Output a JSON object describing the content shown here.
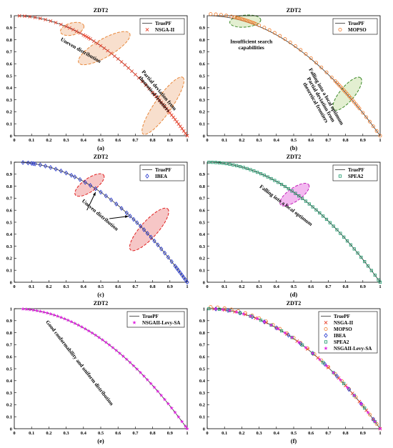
{
  "chart_data": [
    {
      "id": "a",
      "type": "scatter",
      "title": "ZDT2",
      "caption": "(a)",
      "xlim": [
        0,
        1
      ],
      "ylim": [
        0,
        1
      ],
      "xticks": [
        "0",
        "0.1",
        "0.2",
        "0.3",
        "0.4",
        "0.5",
        "0.6",
        "0.7",
        "0.8",
        "0.9",
        "1"
      ],
      "yticks": [
        "0",
        "0.1",
        "0.2",
        "0.3",
        "0.4",
        "0.5",
        "0.6",
        "0.7",
        "0.8",
        "0.9",
        "1"
      ],
      "legend_position": "top-right",
      "legend": [
        "TruePF",
        "NSGA-II"
      ],
      "series": [
        {
          "name": "TruePF",
          "kind": "line",
          "color": "#444444",
          "x_range": [
            0,
            1
          ],
          "formula": "1 - x^2"
        },
        {
          "name": "NSGA-II",
          "kind": "marker",
          "marker": "x",
          "color": "#e8412b",
          "x": [
            0.03,
            0.06,
            0.09,
            0.12,
            0.15,
            0.18,
            0.21,
            0.24,
            0.27,
            0.3,
            0.32,
            0.34,
            0.36,
            0.38,
            0.4,
            0.41,
            0.42,
            0.43,
            0.44,
            0.46,
            0.48,
            0.5,
            0.52,
            0.54,
            0.56,
            0.58,
            0.6,
            0.62,
            0.64,
            0.66,
            0.68,
            0.7,
            0.72,
            0.74,
            0.76,
            0.78,
            0.8,
            0.81,
            0.82,
            0.83,
            0.84,
            0.85,
            0.86,
            0.87,
            0.88,
            0.89,
            0.9,
            0.91,
            0.92,
            0.93,
            0.94,
            0.95,
            0.96,
            0.97,
            0.98,
            0.99,
            1.0
          ]
        }
      ],
      "annotations": [
        {
          "text": "Uneven distribution",
          "x": 0.38,
          "y": 0.7,
          "rotation": 30
        }
      ],
      "annotations_multiline": [
        {
          "lines": [
            "Partial deviation from",
            "theoretical frontiers"
          ],
          "x": 0.83,
          "y": 0.37,
          "rotation": 50
        }
      ],
      "ellipses": [
        {
          "cx": 0.335,
          "cy": 0.89,
          "rx": 0.07,
          "ry": 0.05,
          "angle": -15,
          "fill": "#f6d7c0",
          "stroke": "#e8873a"
        },
        {
          "cx": 0.52,
          "cy": 0.73,
          "rx": 0.17,
          "ry": 0.075,
          "angle": -30,
          "fill": "#f6d7c0",
          "stroke": "#e8873a"
        },
        {
          "cx": 0.86,
          "cy": 0.25,
          "rx": 0.2,
          "ry": 0.07,
          "angle": -55,
          "fill": "#f6d7c0",
          "stroke": "#e8873a"
        }
      ]
    },
    {
      "id": "b",
      "type": "scatter",
      "title": "ZDT2",
      "caption": "(b)",
      "xlim": [
        0,
        1
      ],
      "ylim": [
        0,
        1
      ],
      "xticks": [
        "0",
        "0.1",
        "0.2",
        "0.3",
        "0.4",
        "0.5",
        "0.6",
        "0.7",
        "0.8",
        "0.9",
        "1"
      ],
      "yticks": [
        "0",
        "0.1",
        "0.2",
        "0.3",
        "0.4",
        "0.5",
        "0.6",
        "0.7",
        "0.8",
        "0.9",
        "1"
      ],
      "legend_position": "top-right",
      "legend": [
        "TruePF",
        "MOPSO"
      ],
      "series": [
        {
          "name": "TruePF",
          "kind": "line",
          "color": "#444444",
          "x_range": [
            0,
            1
          ],
          "formula": "1 - x^2"
        },
        {
          "name": "MOPSO",
          "kind": "marker",
          "marker": "circle",
          "color": "#f07a2a",
          "x": [
            0.02,
            0.05,
            0.08,
            0.11,
            0.14,
            0.16,
            0.17,
            0.18,
            0.19,
            0.2,
            0.21,
            0.22,
            0.23,
            0.24,
            0.25,
            0.26,
            0.27,
            0.28,
            0.3,
            0.33,
            0.36,
            0.39,
            0.42,
            0.45,
            0.48,
            0.51,
            0.54,
            0.57,
            0.6,
            0.63,
            0.66,
            0.69,
            0.72,
            0.74,
            0.75,
            0.76,
            0.77,
            0.78,
            0.79,
            0.8,
            0.81,
            0.82,
            0.83,
            0.84,
            0.85,
            0.86,
            0.87,
            0.88,
            0.9,
            0.92,
            0.94,
            0.96,
            0.98,
            1.0
          ],
          "offset": 0.015
        }
      ],
      "annotations_multiline": [
        {
          "lines": [
            "Insufficient search",
            "capabilities"
          ],
          "x": 0.255,
          "y": 0.77,
          "rotation": 0
        },
        {
          "lines": [
            "Falling into a local optimum",
            "Partial deviation from",
            "theoretical frontiers"
          ],
          "x": 0.68,
          "y": 0.32,
          "rotation": 60
        }
      ],
      "ellipses": [
        {
          "cx": 0.22,
          "cy": 0.955,
          "rx": 0.09,
          "ry": 0.05,
          "angle": -5,
          "fill": "#dcebc6",
          "stroke": "#3d8a2a"
        },
        {
          "cx": 0.81,
          "cy": 0.35,
          "rx": 0.12,
          "ry": 0.06,
          "angle": -50,
          "fill": "#dcebc6",
          "stroke": "#3d8a2a"
        }
      ]
    },
    {
      "id": "c",
      "type": "scatter",
      "title": "ZDT2",
      "caption": "(c)",
      "xlim": [
        0,
        1
      ],
      "ylim": [
        0,
        1
      ],
      "xticks": [
        "0",
        "0.1",
        "0.2",
        "0.3",
        "0.4",
        "0.5",
        "0.6",
        "0.7",
        "0.8",
        "0.9",
        "1"
      ],
      "yticks": [
        "0",
        "0.1",
        "0.2",
        "0.3",
        "0.4",
        "0.5",
        "0.6",
        "0.7",
        "0.8",
        "0.9",
        "1"
      ],
      "legend_position": "top-right",
      "legend": [
        "TruePF",
        "IBEA"
      ],
      "series": [
        {
          "name": "TruePF",
          "kind": "line",
          "color": "#444444",
          "x_range": [
            0.04,
            1
          ],
          "formula": "1 - x^2"
        },
        {
          "name": "IBEA",
          "kind": "marker",
          "marker": "diamond",
          "color": "#2233cc",
          "x": [
            0.05,
            0.08,
            0.1,
            0.11,
            0.12,
            0.15,
            0.18,
            0.21,
            0.24,
            0.27,
            0.3,
            0.33,
            0.35,
            0.38,
            0.41,
            0.44,
            0.47,
            0.5,
            0.53,
            0.56,
            0.59,
            0.62,
            0.65,
            0.67,
            0.69,
            0.71,
            0.73,
            0.75,
            0.77,
            0.79,
            0.81,
            0.83,
            0.85,
            0.87,
            0.89,
            0.91,
            0.93,
            0.94,
            0.95,
            0.96,
            0.97,
            0.98,
            0.99,
            1.0
          ]
        }
      ],
      "annotations": [
        {
          "text": "Uneven distribution",
          "x": 0.49,
          "y": 0.55,
          "rotation": 40
        }
      ],
      "arrows": [
        {
          "x1": 0.42,
          "y1": 0.6,
          "x2": 0.47,
          "y2": 0.75
        },
        {
          "x1": 0.55,
          "y1": 0.53,
          "x2": 0.66,
          "y2": 0.55
        }
      ],
      "ellipses": [
        {
          "cx": 0.435,
          "cy": 0.81,
          "rx": 0.1,
          "ry": 0.055,
          "angle": -35,
          "fill": "#f4b8b8",
          "stroke": "#e02020"
        },
        {
          "cx": 0.78,
          "cy": 0.44,
          "rx": 0.16,
          "ry": 0.07,
          "angle": -48,
          "fill": "#f4b8b8",
          "stroke": "#e02020"
        }
      ]
    },
    {
      "id": "d",
      "type": "scatter",
      "title": "ZDT2",
      "caption": "(d)",
      "xlim": [
        0,
        1
      ],
      "ylim": [
        0,
        1
      ],
      "xticks": [
        "0",
        "0.1",
        "0.2",
        "0.3",
        "0.4",
        "0.5",
        "0.6",
        "0.7",
        "0.8",
        "0.9",
        "1"
      ],
      "yticks": [
        "0",
        "0.1",
        "0.2",
        "0.3",
        "0.4",
        "0.5",
        "0.6",
        "0.7",
        "0.8",
        "0.9",
        "1"
      ],
      "legend_position": "top-right",
      "legend": [
        "TruePF",
        "SPEA2"
      ],
      "series": [
        {
          "name": "TruePF",
          "kind": "line",
          "color": "#444444",
          "x_range": [
            0,
            1
          ],
          "formula": "1 - x^2"
        },
        {
          "name": "SPEA2",
          "kind": "marker",
          "marker": "square",
          "color": "#1a9a6a",
          "x": [
            0.01,
            0.03,
            0.05,
            0.07,
            0.09,
            0.11,
            0.13,
            0.15,
            0.17,
            0.19,
            0.21,
            0.23,
            0.25,
            0.27,
            0.29,
            0.31,
            0.33,
            0.35,
            0.37,
            0.39,
            0.41,
            0.43,
            0.45,
            0.47,
            0.49,
            0.51,
            0.53,
            0.55,
            0.57,
            0.59,
            0.61,
            0.63,
            0.65,
            0.67,
            0.69,
            0.71,
            0.73,
            0.75,
            0.77,
            0.79,
            0.81,
            0.83,
            0.85,
            0.87,
            0.89,
            0.91,
            0.93,
            0.95,
            0.97,
            0.99,
            1.0
          ]
        }
      ],
      "annotations": [
        {
          "text": "Falling into a local optimum",
          "x": 0.45,
          "y": 0.63,
          "rotation": 37
        }
      ],
      "ellipses": [
        {
          "cx": 0.505,
          "cy": 0.73,
          "rx": 0.1,
          "ry": 0.055,
          "angle": -35,
          "fill": "#f0a8ec",
          "stroke": "#c020b8"
        }
      ]
    },
    {
      "id": "e",
      "type": "scatter",
      "title": "ZDT2",
      "caption": "(e)",
      "xlim": [
        0,
        1
      ],
      "ylim": [
        0,
        1
      ],
      "xticks": [
        "0",
        "0.1",
        "0.2",
        "0.3",
        "0.4",
        "0.5",
        "0.6",
        "0.7",
        "0.8",
        "0.9",
        "1"
      ],
      "yticks": [
        "0",
        "0.1",
        "0.2",
        "0.3",
        "0.4",
        "0.5",
        "0.6",
        "0.7",
        "0.8",
        "0.9",
        "1"
      ],
      "legend_position": "top-right",
      "legend": [
        "TruePF",
        "NSGAII-Levy-SA"
      ],
      "series": [
        {
          "name": "TruePF",
          "kind": "line",
          "color": "#444444",
          "x_range": [
            0.05,
            1
          ],
          "formula": "1 - x^2"
        },
        {
          "name": "NSGAII-Levy-SA",
          "kind": "marker",
          "marker": "star",
          "color": "#e020e0",
          "x": [
            0.05,
            0.07,
            0.09,
            0.11,
            0.13,
            0.15,
            0.17,
            0.19,
            0.21,
            0.23,
            0.25,
            0.27,
            0.29,
            0.31,
            0.33,
            0.35,
            0.37,
            0.39,
            0.41,
            0.43,
            0.45,
            0.47,
            0.49,
            0.51,
            0.53,
            0.55,
            0.57,
            0.59,
            0.61,
            0.63,
            0.65,
            0.67,
            0.69,
            0.71,
            0.73,
            0.75,
            0.77,
            0.79,
            0.81,
            0.83,
            0.85,
            0.87,
            0.89,
            0.91,
            0.93,
            0.95,
            0.97,
            0.99,
            1.0
          ]
        }
      ],
      "annotations": [
        {
          "text": "Good conformability and uniform distribution",
          "x": 0.37,
          "y": 0.54,
          "rotation": 52
        }
      ]
    },
    {
      "id": "f",
      "type": "scatter",
      "title": "ZDT2",
      "caption": "(f)",
      "xlim": [
        0,
        1
      ],
      "ylim": [
        0,
        1
      ],
      "xticks": [
        "0",
        "0.1",
        "0.2",
        "0.3",
        "0.4",
        "0.5",
        "0.6",
        "0.7",
        "0.8",
        "0.9",
        "1"
      ],
      "yticks": [
        "0",
        "0.1",
        "0.2",
        "0.3",
        "0.4",
        "0.5",
        "0.6",
        "0.7",
        "0.8",
        "0.9",
        "1"
      ],
      "legend_position": "top-right",
      "legend": [
        "TruePF",
        "NSGA-II",
        "MOPSO",
        "IBEA",
        "SPEA2",
        "NSGAII-Levy-SA"
      ],
      "series": [
        {
          "name": "TruePF",
          "kind": "line",
          "color": "#444444",
          "x_range": [
            0,
            1
          ],
          "formula": "1 - x^2"
        },
        {
          "name": "NSGA-II",
          "kind": "marker",
          "marker": "x",
          "color": "#e8412b",
          "x": [
            0.04,
            0.1,
            0.16,
            0.22,
            0.28,
            0.34,
            0.4,
            0.46,
            0.52,
            0.58,
            0.64,
            0.7,
            0.76,
            0.8,
            0.84,
            0.88,
            0.92,
            0.96,
            1.0
          ]
        },
        {
          "name": "MOPSO",
          "kind": "marker",
          "marker": "circle",
          "color": "#f07a2a",
          "x": [
            0.02,
            0.06,
            0.1,
            0.14,
            0.18,
            0.22,
            0.26,
            0.3,
            0.34,
            0.38,
            0.42,
            0.46,
            0.5,
            0.54,
            0.58,
            0.62,
            0.66,
            0.7,
            0.74,
            0.78,
            0.82,
            0.86,
            0.9,
            0.94,
            0.98
          ],
          "offset": 0.015
        },
        {
          "name": "IBEA",
          "kind": "marker",
          "marker": "diamond",
          "color": "#2233cc",
          "x": [
            0.05,
            0.12,
            0.19,
            0.26,
            0.33,
            0.4,
            0.47,
            0.54,
            0.61,
            0.68,
            0.75,
            0.82,
            0.89,
            0.96
          ]
        },
        {
          "name": "SPEA2",
          "kind": "marker",
          "marker": "square",
          "color": "#1a9a6a",
          "x": [
            0.01,
            0.07,
            0.13,
            0.19,
            0.25,
            0.31,
            0.37,
            0.43,
            0.49,
            0.55,
            0.61,
            0.67,
            0.73,
            0.79,
            0.85,
            0.91,
            0.97
          ]
        },
        {
          "name": "NSGAII-Levy-SA",
          "kind": "marker",
          "marker": "star",
          "color": "#e020e0",
          "x": [
            0.05,
            0.09,
            0.13,
            0.17,
            0.21,
            0.25,
            0.29,
            0.33,
            0.37,
            0.41,
            0.45,
            0.49,
            0.53,
            0.57,
            0.61,
            0.65,
            0.69,
            0.73,
            0.77,
            0.81,
            0.85,
            0.89,
            0.93,
            0.97,
            1.0
          ]
        }
      ]
    }
  ]
}
